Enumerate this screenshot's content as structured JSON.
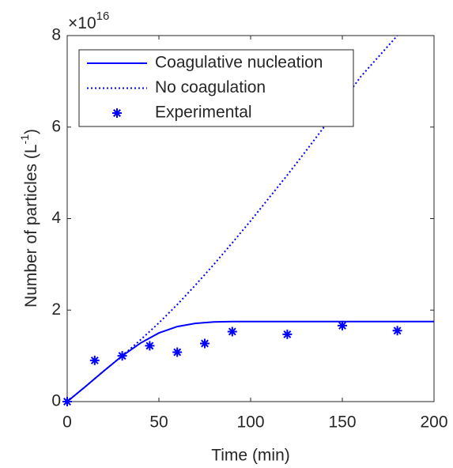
{
  "chart_data": {
    "type": "line",
    "xlabel": "Time (min)",
    "ylabel": "Number of particles (L",
    "ylabel_sup": "-1",
    "ylabel_end": ")",
    "y_multiplier": {
      "base": "×10",
      "exponent": "16"
    },
    "xlim": [
      0,
      200
    ],
    "xticks": [
      0,
      50,
      100,
      150,
      200
    ],
    "ylim": [
      0,
      8
    ],
    "yticks": [
      0,
      2,
      4,
      6,
      8
    ],
    "legend_position": "upper-left",
    "series": [
      {
        "name": "Coagulative nucleation",
        "color": "#0000ff",
        "style": "solid",
        "x": [
          0,
          10,
          20,
          30,
          40,
          50,
          60,
          70,
          80,
          90,
          100,
          120,
          140,
          160,
          180,
          200
        ],
        "values": [
          0,
          0.33,
          0.67,
          1.0,
          1.28,
          1.5,
          1.64,
          1.71,
          1.74,
          1.75,
          1.75,
          1.75,
          1.75,
          1.75,
          1.75,
          1.75
        ]
      },
      {
        "name": "No coagulation",
        "color": "#0000ff",
        "style": "dotted",
        "x": [
          0,
          10,
          20,
          30,
          40,
          50,
          60,
          70,
          80,
          90,
          100,
          110,
          120,
          130,
          140,
          150,
          160,
          170,
          180
        ],
        "values": [
          0,
          0.33,
          0.67,
          1.0,
          1.35,
          1.72,
          2.12,
          2.55,
          3.0,
          3.47,
          3.95,
          4.45,
          4.95,
          5.47,
          6.0,
          6.55,
          7.1,
          7.55,
          8.0
        ]
      },
      {
        "name": "Experimental",
        "color": "#0000ff",
        "style": "marker",
        "x": [
          0,
          15,
          30,
          45,
          60,
          75,
          90,
          120,
          150,
          180
        ],
        "values": [
          0,
          0.9,
          1.0,
          1.22,
          1.08,
          1.27,
          1.53,
          1.47,
          1.66,
          1.55
        ]
      }
    ]
  }
}
